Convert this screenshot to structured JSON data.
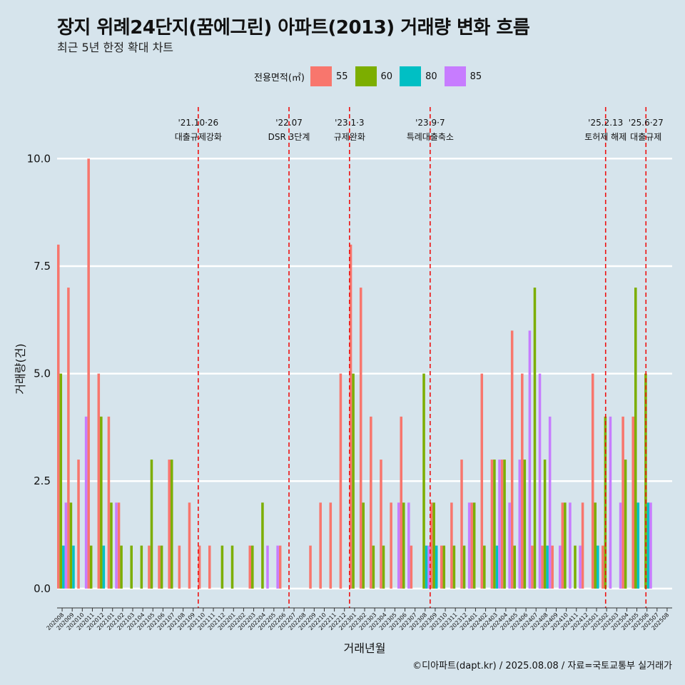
{
  "title": "장지 위례24단지(꿈에그린) 아파트(2013) 거래량 변화 흐름",
  "subtitle": "최근 5년 한정 확대 차트",
  "caption": "©디아파트(dapt.kr) / 2025.08.08 / 자료=국토교통부 실거래가",
  "legend_title": "전용면적(㎡)",
  "chart_data": {
    "type": "bar",
    "xlabel": "거래년월",
    "ylabel": "거래량(건)",
    "ylim": [
      -0.45,
      11.2
    ],
    "yticks": [
      0.0,
      2.5,
      5.0,
      7.5,
      10.0
    ],
    "ytick_labels": [
      "0.0",
      "2.5",
      "5.0",
      "7.5",
      "10.0"
    ],
    "categories": [
      "202008",
      "202009",
      "202010",
      "202011",
      "202012",
      "202101",
      "202102",
      "202103",
      "202104",
      "202105",
      "202106",
      "202107",
      "202108",
      "202109",
      "202110",
      "202111",
      "202112",
      "202201",
      "202202",
      "202203",
      "202204",
      "202205",
      "202206",
      "202207",
      "202208",
      "202209",
      "202210",
      "202211",
      "202212",
      "202301",
      "202302",
      "202303",
      "202304",
      "202305",
      "202306",
      "202307",
      "202308",
      "202309",
      "202310",
      "202311",
      "202312",
      "202401",
      "202402",
      "202403",
      "202404",
      "202405",
      "202406",
      "202407",
      "202408",
      "202409",
      "202410",
      "202411",
      "202412",
      "202501",
      "202502",
      "202503",
      "202504",
      "202505",
      "202506",
      "202507",
      "202508"
    ],
    "series": [
      {
        "name": "55",
        "color": "#f8766d",
        "values": [
          8,
          7,
          3,
          10,
          5,
          4,
          2,
          0,
          0,
          1,
          1,
          3,
          1,
          2,
          1,
          1,
          0,
          0,
          0,
          1,
          0,
          0,
          1,
          0,
          0,
          1,
          2,
          2,
          5,
          8,
          7,
          4,
          3,
          2,
          4,
          1,
          0,
          2,
          1,
          2,
          3,
          2,
          5,
          3,
          3,
          6,
          5,
          1,
          1,
          1,
          2,
          0,
          2,
          5,
          1,
          0,
          4,
          4,
          0,
          0,
          0
        ]
      },
      {
        "name": "60",
        "color": "#7cae00",
        "values": [
          5,
          2,
          0,
          1,
          4,
          2,
          1,
          1,
          1,
          3,
          1,
          3,
          0,
          0,
          0,
          0,
          1,
          1,
          0,
          1,
          2,
          0,
          0,
          0,
          0,
          0,
          0,
          0,
          0,
          5,
          2,
          1,
          1,
          0,
          2,
          0,
          5,
          2,
          1,
          1,
          1,
          2,
          1,
          3,
          3,
          1,
          3,
          7,
          3,
          0,
          2,
          1,
          0,
          2,
          4,
          0,
          3,
          7,
          5,
          0,
          0
        ]
      },
      {
        "name": "80",
        "color": "#00bfc4",
        "values": [
          1,
          1,
          0,
          0,
          1,
          0,
          0,
          0,
          0,
          0,
          0,
          0,
          0,
          0,
          0,
          0,
          0,
          0,
          0,
          0,
          0,
          0,
          0,
          0,
          0,
          0,
          0,
          0,
          0,
          0,
          0,
          0,
          0,
          0,
          0,
          0,
          1,
          1,
          0,
          0,
          0,
          0,
          0,
          1,
          0,
          0,
          0,
          0,
          1,
          0,
          0,
          0,
          0,
          1,
          0,
          0,
          0,
          2,
          2,
          0,
          0
        ]
      },
      {
        "name": "85",
        "color": "#c77cff",
        "values": [
          2,
          0,
          4,
          0,
          0,
          2,
          0,
          0,
          0,
          0,
          0,
          0,
          0,
          0,
          0,
          0,
          0,
          0,
          0,
          0,
          1,
          1,
          0,
          0,
          0,
          0,
          0,
          0,
          0,
          0,
          0,
          0,
          0,
          2,
          2,
          0,
          1,
          0,
          0,
          0,
          2,
          0,
          0,
          3,
          2,
          3,
          6,
          5,
          4,
          1,
          2,
          1,
          0,
          0,
          4,
          2,
          0,
          0,
          2,
          0,
          0
        ]
      }
    ],
    "events": [
      {
        "date": "'21.10·26",
        "label": "대출규제강화",
        "position": 14.0
      },
      {
        "date": "'22.07",
        "label": "DSR 3단계",
        "position": 23.0
      },
      {
        "date": "'23.1·3",
        "label": "규제완화",
        "position": 29.0
      },
      {
        "date": "'23.9·7",
        "label": "특례대출축소",
        "position": 37.0
      },
      {
        "date": "'25.2.13",
        "label": "토허제 해제",
        "position": 54.4
      },
      {
        "date": "'25.6·27",
        "label": "대출규제",
        "position": 58.4
      }
    ]
  }
}
